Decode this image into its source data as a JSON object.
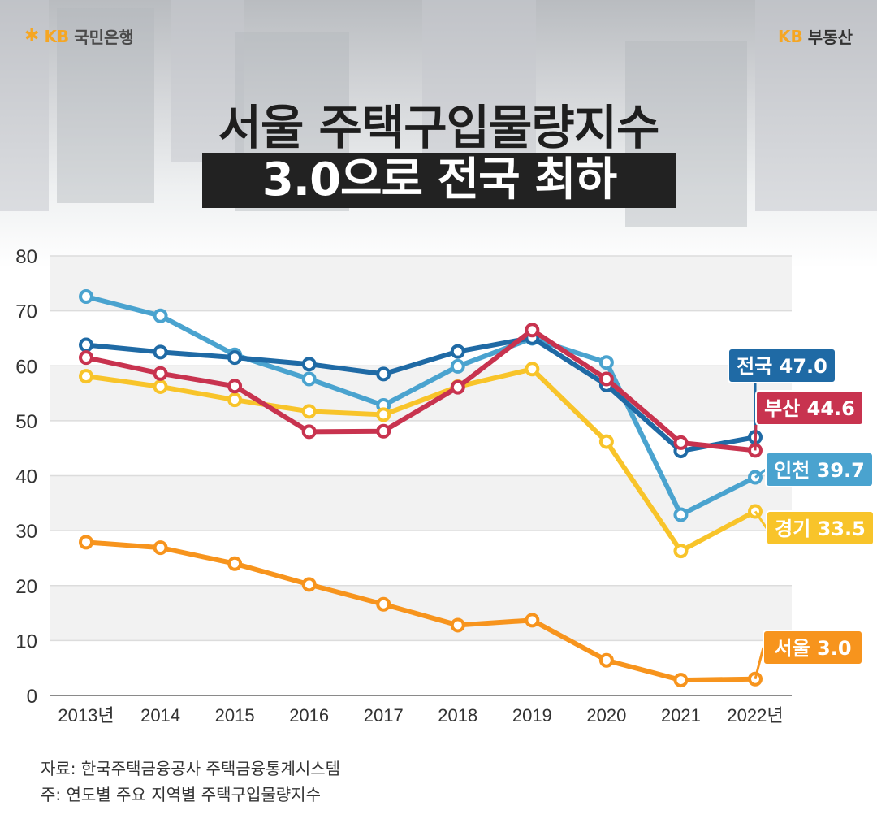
{
  "header": {
    "left_logo_mark": "KB",
    "left_logo_text": "국민은행",
    "right_logo_mark": "KB",
    "right_logo_text": "부동산"
  },
  "title": {
    "line1": "서울 주택구입물량지수",
    "line2": "3.0으로 전국 최하"
  },
  "colors": {
    "nationwide": "#1f6aa5",
    "busan": "#c8334f",
    "incheon": "#4aa3cf",
    "gyeonggi": "#f8c42a",
    "seoul": "#f7941d"
  },
  "chart_data": {
    "type": "line",
    "categories": [
      "2013년",
      "2014",
      "2015",
      "2016",
      "2017",
      "2018",
      "2019",
      "2020",
      "2021",
      "2022년"
    ],
    "ylim": [
      0,
      80
    ],
    "yticks": [
      0,
      10,
      20,
      30,
      40,
      50,
      60,
      70,
      80
    ],
    "grid": true,
    "series": [
      {
        "key": "incheon",
        "name": "인천",
        "end_label": "인천 39.7",
        "values": [
          72.6,
          69.1,
          62.0,
          57.6,
          52.8,
          59.9,
          65.0,
          60.6,
          32.9,
          39.7
        ]
      },
      {
        "key": "nationwide",
        "name": "전국",
        "end_label": "전국 47.0",
        "values": [
          63.8,
          62.5,
          61.5,
          60.3,
          58.5,
          62.6,
          65.1,
          56.5,
          44.5,
          47.0
        ]
      },
      {
        "key": "gyeonggi",
        "name": "경기",
        "end_label": "경기 33.5",
        "values": [
          58.1,
          56.2,
          53.8,
          51.7,
          51.1,
          56.2,
          59.4,
          46.2,
          26.3,
          33.5
        ]
      },
      {
        "key": "busan",
        "name": "부산",
        "end_label": "부산 44.6",
        "values": [
          61.5,
          58.6,
          56.3,
          48.0,
          48.1,
          56.1,
          66.5,
          57.6,
          46.0,
          44.6
        ]
      },
      {
        "key": "seoul",
        "name": "서울",
        "end_label": "서울 3.0",
        "values": [
          27.9,
          26.9,
          24.0,
          20.2,
          16.6,
          12.8,
          13.7,
          6.4,
          2.8,
          3.0
        ]
      }
    ]
  },
  "footnotes": {
    "source": "자료: 한국주택금융공사 주택금융통계시스템",
    "note": "주: 연도별 주요 지역별 주택구입물량지수"
  }
}
